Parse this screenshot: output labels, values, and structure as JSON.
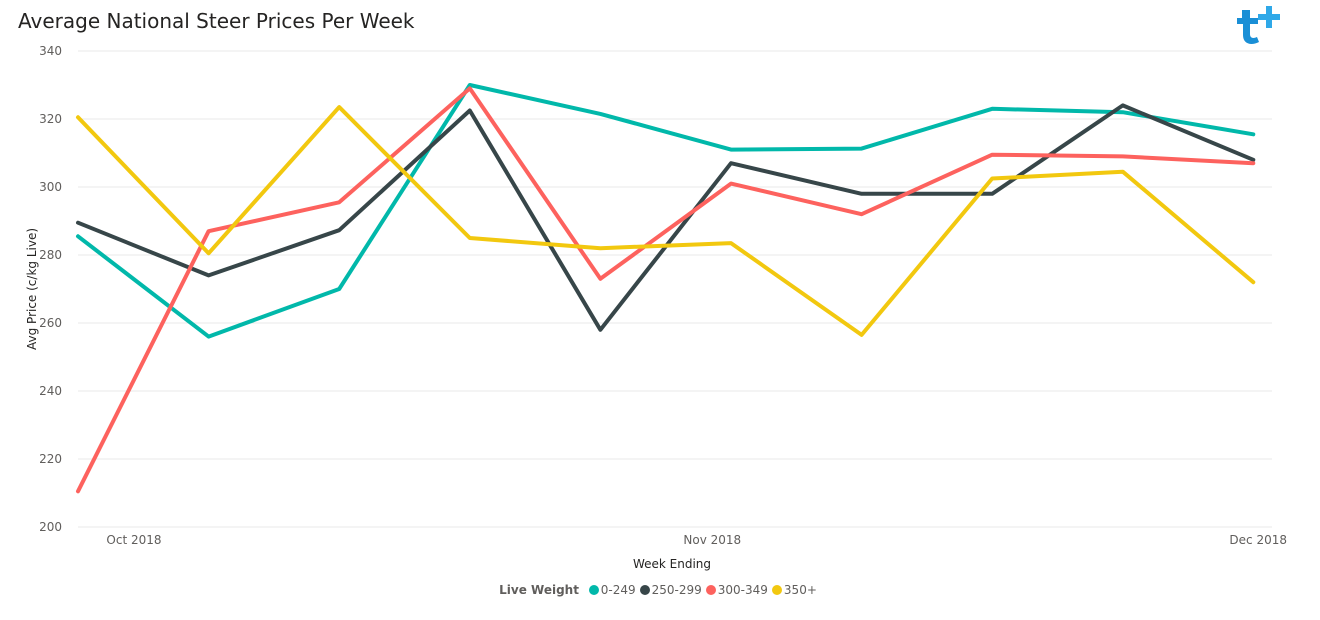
{
  "colors": {
    "series": [
      "#01b8aa",
      "#374649",
      "#fd625e",
      "#f2c80f"
    ],
    "logo": "#1a8fd6"
  },
  "logo_icon": "brand-logo-icon",
  "chart_data": {
    "type": "line",
    "title": "Average National Steer Prices Per Week",
    "xlabel": "Week Ending",
    "ylabel": "Avg Price (c/kg Live)",
    "ylim": [
      200,
      340
    ],
    "yticks": [
      200,
      220,
      240,
      260,
      280,
      300,
      320,
      340
    ],
    "x_tick_labels": [
      "Oct 2018",
      "Nov 2018",
      "Dec 2018"
    ],
    "x": [
      "2018-09-28",
      "2018-10-05",
      "2018-10-12",
      "2018-10-19",
      "2018-10-26",
      "2018-11-02",
      "2018-11-09",
      "2018-11-16",
      "2018-11-23",
      "2018-11-30"
    ],
    "xlim": [
      "2018-09-28",
      "2018-12-01"
    ],
    "grid": true,
    "legend_position": "bottom",
    "legend_title": "Live Weight",
    "series": [
      {
        "name": "0-249",
        "values": [
          285.5,
          256,
          270,
          330,
          321.5,
          311,
          311.3,
          323,
          322,
          315.5
        ]
      },
      {
        "name": "250-299",
        "values": [
          289.5,
          274,
          287.3,
          322.5,
          258,
          307,
          298,
          298,
          324,
          308
        ]
      },
      {
        "name": "300-349",
        "values": [
          210.5,
          287,
          295.5,
          329,
          273,
          301,
          292,
          309.5,
          309,
          307
        ]
      },
      {
        "name": "350+",
        "values": [
          320.5,
          280.5,
          323.5,
          285,
          282,
          283.5,
          256.5,
          302.5,
          304.5,
          272
        ]
      }
    ]
  }
}
